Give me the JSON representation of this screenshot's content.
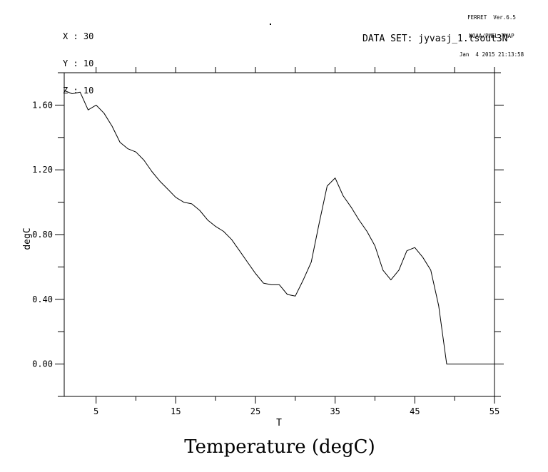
{
  "header": {
    "context": [
      "X : 30",
      "Y : 10",
      "Z : 10"
    ],
    "credit": [
      "FERRET  Ver.6.5",
      "NOAA/PMEL TMAP",
      "Jan  4 2015 21:13:58"
    ],
    "dataset_label": "DATA SET: jyvasj_1.tsout3N"
  },
  "chart_data": {
    "type": "line",
    "title": "Temperature (degC)",
    "xlabel": "T",
    "ylabel": "degC",
    "xlim": [
      1,
      55
    ],
    "ylim": [
      -0.2,
      1.8
    ],
    "grid": false,
    "legend": "none",
    "line_color": "#000000",
    "background": "#ffffff",
    "x_tick_labels": [
      "5",
      "15",
      "25",
      "35",
      "45",
      "55"
    ],
    "x_major_ticks": [
      5,
      15,
      25,
      35,
      45,
      55
    ],
    "x_minor_ticks": [
      10,
      20,
      30,
      40,
      50
    ],
    "x_top_ticks": [
      5,
      10,
      15,
      20,
      25,
      30,
      35,
      40,
      45,
      50,
      55
    ],
    "y_tick_labels": [
      "0.00",
      "0.40",
      "0.80",
      "1.20",
      "1.60"
    ],
    "y_major_ticks": [
      0.0,
      0.4,
      0.8,
      1.2,
      1.6
    ],
    "y_minor_ticks": [
      -0.2,
      0.2,
      0.6,
      1.0,
      1.4,
      1.8
    ],
    "x": [
      1,
      2,
      3,
      4,
      5,
      6,
      7,
      8,
      9,
      10,
      11,
      12,
      13,
      14,
      15,
      16,
      17,
      18,
      19,
      20,
      21,
      22,
      23,
      24,
      25,
      26,
      27,
      28,
      29,
      30,
      31,
      32,
      33,
      34,
      35,
      36,
      37,
      38,
      39,
      40,
      41,
      42,
      43,
      44,
      45,
      46,
      47,
      48,
      49,
      50,
      51,
      52,
      53,
      54,
      55
    ],
    "values": [
      1.69,
      1.67,
      1.68,
      1.57,
      1.6,
      1.55,
      1.47,
      1.37,
      1.33,
      1.31,
      1.26,
      1.19,
      1.13,
      1.08,
      1.03,
      1.0,
      0.99,
      0.95,
      0.89,
      0.85,
      0.82,
      0.77,
      0.7,
      0.63,
      0.56,
      0.5,
      0.49,
      0.49,
      0.43,
      0.42,
      0.52,
      0.63,
      0.87,
      1.1,
      1.15,
      1.04,
      0.97,
      0.89,
      0.82,
      0.73,
      0.58,
      0.52,
      0.58,
      0.7,
      0.72,
      0.66,
      0.58,
      0.36,
      0.0,
      0.0,
      0.0,
      0.0,
      0.0,
      0.0,
      0.0
    ]
  }
}
